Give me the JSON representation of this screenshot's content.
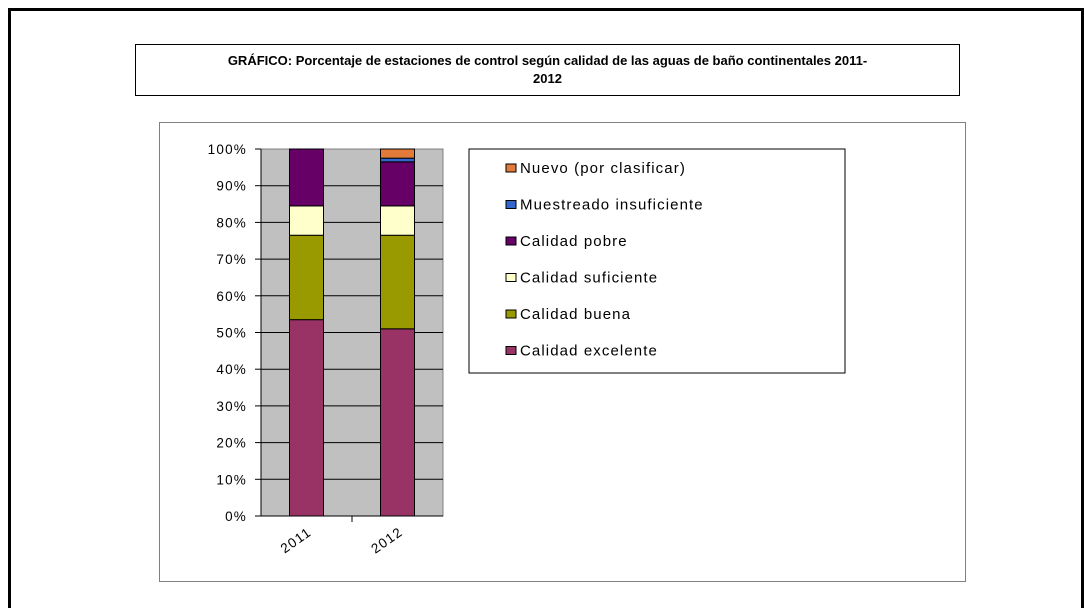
{
  "title": {
    "line1": "GRÁFICO: Porcentaje de estaciones de control según calidad de las aguas de baño  continentales 2011-",
    "line2": "2012"
  },
  "chart_data": {
    "type": "bar",
    "stacked": true,
    "categories": [
      "2011",
      "2012"
    ],
    "series": [
      {
        "name": "Calidad excelente",
        "values": [
          53.5,
          51.0
        ],
        "color": "#993366"
      },
      {
        "name": "Calidad buena",
        "values": [
          23.0,
          25.5
        ],
        "color": "#999900"
      },
      {
        "name": "Calidad suficiente",
        "values": [
          8.0,
          8.0
        ],
        "color": "#FFFFCC"
      },
      {
        "name": "Calidad pobre",
        "values": [
          15.5,
          12.0
        ],
        "color": "#660066"
      },
      {
        "name": "Muestreado insuficiente",
        "values": [
          0.0,
          1.0
        ],
        "color": "#3366CC"
      },
      {
        "name": "Nuevo (por clasificar)",
        "values": [
          0.0,
          2.5
        ],
        "color": "#E07B39"
      }
    ],
    "legend_order": [
      "Nuevo (por clasificar)",
      "Muestreado insuficiente",
      "Calidad pobre",
      "Calidad suficiente",
      "Calidad buena",
      "Calidad excelente"
    ],
    "y_ticks": [
      "0%",
      "10%",
      "20%",
      "30%",
      "40%",
      "50%",
      "60%",
      "70%",
      "80%",
      "90%",
      "100%"
    ],
    "ylim": [
      0,
      100
    ],
    "plot_background": "#C0C0C0",
    "grid": true,
    "legend_position": "right"
  }
}
